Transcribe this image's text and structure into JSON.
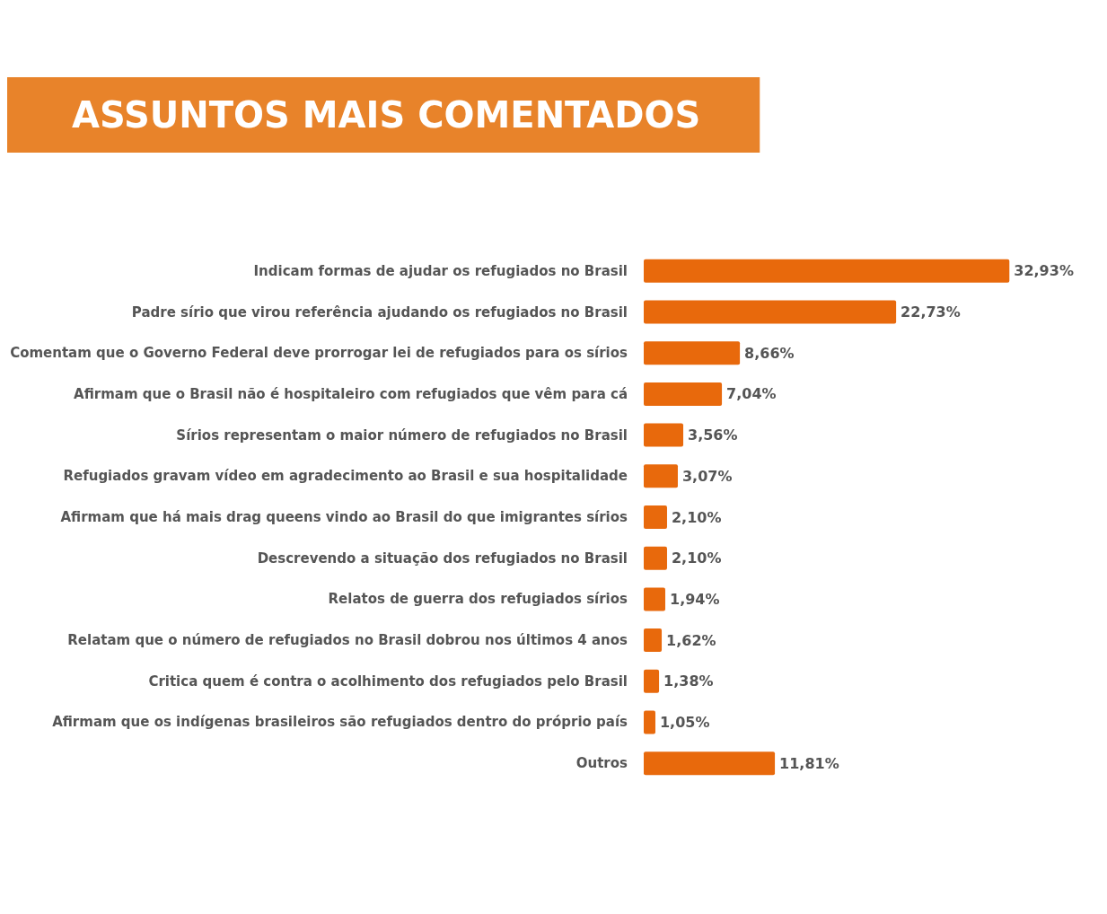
{
  "chart_data": {
    "type": "bar",
    "orientation": "horizontal",
    "title": "ASSUNTOS MAIS COMENTADOS",
    "categories": [
      "Indicam formas de ajudar os refugiados no Brasil",
      "Padre sírio que virou referência ajudando os refugiados no Brasil",
      "Comentam que o Governo Federal deve prorrogar lei de refugiados para os sírios",
      "Afirmam que o Brasil não é hospitaleiro com refugiados que vêm para cá",
      "Sírios representam o maior número de refugiados no Brasil",
      "Refugiados gravam vídeo em agradecimento ao Brasil e sua hospitalidade",
      "Afirmam que há mais drag queens vindo ao Brasil do que imigrantes sírios",
      "Descrevendo a situação dos refugiados no Brasil",
      "Relatos de guerra dos refugiados sírios",
      "Relatam que o número de refugiados no Brasil dobrou nos últimos 4 anos",
      "Critica quem é contra o acolhimento dos refugiados pelo Brasil",
      "Afirmam que os indígenas brasileiros são refugiados dentro do próprio país",
      "Outros"
    ],
    "values": [
      32.93,
      22.73,
      8.66,
      7.04,
      3.56,
      3.07,
      2.1,
      2.1,
      1.94,
      1.62,
      1.38,
      1.05,
      11.81
    ],
    "value_labels": [
      "32,93%",
      "22,73%",
      "8,66%",
      "7,04%",
      "3,56%",
      "3,07%",
      "2,10%",
      "2,10%",
      "1,94%",
      "1,62%",
      "1,38%",
      "1,05%",
      "11,81%"
    ],
    "color": "#e8690c"
  }
}
